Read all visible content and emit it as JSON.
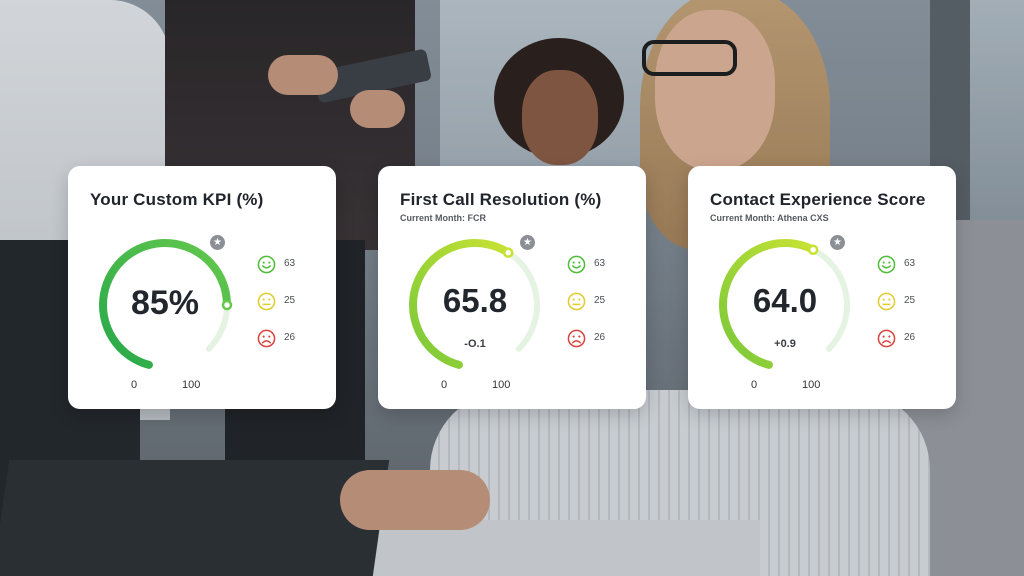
{
  "cards": [
    {
      "title": "Your Custom KPI (%)",
      "subtitle": "",
      "value": "85%",
      "delta": "",
      "fraction": 0.85,
      "gradient_start": "#26a84a",
      "gradient_end": "#66c94d",
      "axis_min": "0",
      "axis_max": "100",
      "icon": "star-icon",
      "sentiments": {
        "positive": "63",
        "neutral": "25",
        "negative": "26"
      }
    },
    {
      "title": "First Call Resolution (%)",
      "subtitle": "Current Month: FCR",
      "value": "65.8",
      "delta": "-O.1",
      "fraction": 0.658,
      "gradient_start": "#79c83a",
      "gradient_end": "#c8e233",
      "axis_min": "0",
      "axis_max": "100",
      "icon": "star-icon",
      "sentiments": {
        "positive": "63",
        "neutral": "25",
        "negative": "26"
      }
    },
    {
      "title": "Contact Experience Score",
      "subtitle": "Current Month:  Athena CXS",
      "value": "64.0",
      "delta": "+0.9",
      "fraction": 0.64,
      "gradient_start": "#79c83a",
      "gradient_end": "#c8e233",
      "axis_min": "0",
      "axis_max": "100",
      "icon": "star-icon",
      "sentiments": {
        "positive": "63",
        "neutral": "25",
        "negative": "26"
      }
    }
  ],
  "colors": {
    "positive": "#4fbd3a",
    "neutral": "#e0cc2c",
    "negative": "#d9443d",
    "track": "#e4f3e2"
  }
}
